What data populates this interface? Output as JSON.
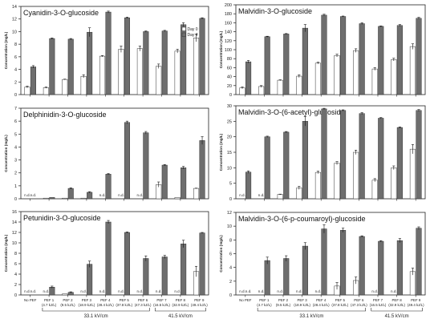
{
  "groups": [
    {
      "label": "33.1 kV/cm"
    },
    {
      "label": "41.5 kV/cm"
    }
  ],
  "chart_data": [
    {
      "type": "bar",
      "title": "Cyanidin-3-O-glucoside",
      "ylabel": "Concentration (mg/L)",
      "ylim": [
        0,
        14
      ],
      "yticks": [
        "0",
        "2",
        "4",
        "6",
        "8",
        "10",
        "12",
        "14"
      ],
      "legend": [
        "Day 0",
        "Day 4"
      ],
      "categories": [
        "No PEF",
        "PEF 1",
        "PEF 2",
        "PEF 3",
        "PEF 4",
        "PEF 5",
        "PEF 6",
        "PEF 7",
        "PEF 8",
        "PEF 9"
      ],
      "series": [
        {
          "name": "Day 0",
          "values": [
            1.2,
            1.1,
            2.4,
            2.9,
            6.1,
            7.2,
            7.3,
            4.5,
            6.9,
            9.0
          ],
          "errors": [
            0.15,
            0.1,
            0.05,
            0.25,
            0.1,
            0.5,
            0.4,
            0.35,
            0.3,
            0.6
          ],
          "nd": [
            false,
            false,
            false,
            false,
            false,
            false,
            false,
            false,
            false,
            false
          ]
        },
        {
          "name": "Day 4",
          "values": [
            4.4,
            8.9,
            8.8,
            9.9,
            13.1,
            12.2,
            10.0,
            10.1,
            11.1,
            12.1
          ],
          "errors": [
            0.2,
            0.1,
            0.1,
            0.7,
            0.15,
            0.1,
            0.1,
            0.1,
            0.3,
            0.1
          ],
          "nd": [
            false,
            false,
            false,
            false,
            false,
            false,
            false,
            false,
            false,
            false
          ]
        }
      ]
    },
    {
      "type": "bar",
      "title": "Malvidin-3-O-glucoside",
      "ylabel": "Concentration (mg/L)",
      "ylim": [
        0,
        200
      ],
      "yticks": [
        "0",
        "20",
        "40",
        "60",
        "80",
        "100",
        "120",
        "140",
        "160",
        "180",
        "200"
      ],
      "categories": [
        "No PEF",
        "PEF 1",
        "PEF 2",
        "PEF 3",
        "PEF 4",
        "PEF 5",
        "PEF 6",
        "PEF 7",
        "PEF 8",
        "PEF 9"
      ],
      "series": [
        {
          "name": "Day 0",
          "values": [
            15,
            18,
            32,
            41,
            70,
            87,
            98,
            57,
            78,
            107
          ],
          "errors": [
            2,
            2,
            1,
            3,
            2,
            3,
            4,
            3,
            3,
            6
          ],
          "nd": [
            false,
            false,
            false,
            false,
            false,
            false,
            false,
            false,
            false,
            false
          ]
        },
        {
          "name": "Day 4",
          "values": [
            73,
            129,
            135,
            148,
            177,
            174,
            158,
            152,
            154,
            170
          ],
          "errors": [
            3,
            1,
            1,
            8,
            2,
            1,
            2,
            1,
            2,
            2
          ],
          "nd": [
            false,
            false,
            false,
            false,
            false,
            false,
            false,
            false,
            false,
            false
          ]
        }
      ]
    },
    {
      "type": "bar",
      "title": "Delphinidin-3-O-glucoside",
      "ylabel": "Concentration (mg/L)",
      "ylim": [
        0,
        7
      ],
      "yticks": [
        "0",
        "1",
        "2",
        "3",
        "4",
        "5",
        "6",
        "7"
      ],
      "categories": [
        "No PEF",
        "PEF 1",
        "PEF 2",
        "PEF 3",
        "PEF 4",
        "PEF 5",
        "PEF 6",
        "PEF 7",
        "PEF 8",
        "PEF 9"
      ],
      "series": [
        {
          "name": "Day 0",
          "values": [
            0,
            0.05,
            0.05,
            0.05,
            0,
            0,
            0,
            1.1,
            0.1,
            0.8
          ],
          "errors": [
            0,
            0,
            0,
            0,
            0,
            0,
            0,
            0.2,
            0,
            0.02
          ],
          "nd": [
            true,
            false,
            false,
            false,
            true,
            true,
            true,
            false,
            false,
            false
          ]
        },
        {
          "name": "Day 4",
          "values": [
            0,
            0.1,
            0.8,
            0.5,
            1.9,
            5.9,
            5.1,
            2.6,
            2.4,
            4.5
          ],
          "errors": [
            0,
            0,
            0.05,
            0.05,
            0.05,
            0.1,
            0.1,
            0.05,
            0.1,
            0.3
          ],
          "nd": [
            true,
            false,
            false,
            false,
            false,
            false,
            false,
            false,
            false,
            false
          ]
        }
      ]
    },
    {
      "type": "bar",
      "title": "Malvidin-3-O-(6-acetyl)-glucoside",
      "ylabel": "Concentration (mg/L)",
      "ylim": [
        0,
        30
      ],
      "yticks": [
        "0",
        "5",
        "10",
        "15",
        "20",
        "25",
        "30"
      ],
      "categories": [
        "No PEF",
        "PEF 1",
        "PEF 2",
        "PEF 3",
        "PEF 4",
        "PEF 5",
        "PEF 6",
        "PEF 7",
        "PEF 8",
        "PEF 9"
      ],
      "series": [
        {
          "name": "Day 0",
          "values": [
            0,
            0,
            1.4,
            3.5,
            8.5,
            11.5,
            15.0,
            6.0,
            10.0,
            16.0
          ],
          "errors": [
            0,
            0,
            0.1,
            0.5,
            0.4,
            0.5,
            0.7,
            0.5,
            0.6,
            1.5
          ],
          "nd": [
            true,
            true,
            false,
            false,
            false,
            false,
            false,
            false,
            false,
            false
          ]
        },
        {
          "name": "Day 4",
          "values": [
            8.6,
            20.0,
            21.5,
            25.0,
            29.0,
            28.5,
            27.5,
            26.0,
            23.0,
            28.5
          ],
          "errors": [
            0.4,
            0.2,
            0.2,
            1.5,
            0.2,
            0.2,
            0.3,
            0.2,
            0.2,
            0.3
          ],
          "nd": [
            false,
            false,
            false,
            false,
            false,
            false,
            false,
            false,
            false,
            false
          ]
        }
      ]
    },
    {
      "type": "bar",
      "title": "Petunidin-3-O-glucoside",
      "ylabel": "Concentration (mg/L)",
      "ylim": [
        0,
        16
      ],
      "yticks": [
        "0",
        "2",
        "4",
        "6",
        "8",
        "10",
        "12",
        "14",
        "16"
      ],
      "categories": [
        "No PEF",
        "PEF 1",
        "PEF 2",
        "PEF 3",
        "PEF 4",
        "PEF 5",
        "PEF 6",
        "PEF 7",
        "PEF 8",
        "PEF 9"
      ],
      "series": [
        {
          "name": "Day 0",
          "values": [
            0,
            0,
            0.2,
            0,
            0,
            0,
            0,
            0,
            0,
            4.5
          ],
          "errors": [
            0,
            0,
            0,
            0,
            0,
            0,
            0,
            0,
            0,
            1.0
          ],
          "nd": [
            true,
            true,
            false,
            true,
            true,
            true,
            true,
            true,
            true,
            false
          ]
        },
        {
          "name": "Day 4",
          "values": [
            0,
            1.5,
            0.5,
            5.9,
            14.0,
            12.0,
            7.0,
            7.3,
            9.8,
            11.9
          ],
          "errors": [
            0,
            0.2,
            0.1,
            0.6,
            0.3,
            0.1,
            0.5,
            0.3,
            0.7,
            0.1
          ],
          "nd": [
            true,
            false,
            false,
            false,
            false,
            false,
            false,
            false,
            false,
            false
          ]
        }
      ]
    },
    {
      "type": "bar",
      "title": "Malvidin-3-O-(6-p-coumaroyl)-glucoside",
      "ylabel": "Concentration (mg/L)",
      "ylim": [
        0,
        12
      ],
      "yticks": [
        "0",
        "2",
        "4",
        "6",
        "8",
        "10",
        "12"
      ],
      "categories": [
        "No PEF",
        "PEF 1",
        "PEF 2",
        "PEF 3",
        "PEF 4",
        "PEF 5",
        "PEF 6",
        "PEF 7",
        "PEF 8",
        "PEF 9"
      ],
      "xticks": [
        "No PEF",
        "PEF 1\n(4.7 kJ/L)",
        "PEF 2\n(9.5 kJ/L)",
        "PEF 3\n(18.9 kJ/L)",
        "PEF 4\n(28.4 kJ/L)",
        "PEF 5\n(37.8 kJ/L)",
        "PEF 6\n(47.3 kJ/L)",
        "PEF 7\n(16.5 kJ/L)",
        "PEF 8\n(32.9 kJ/L)",
        "PEF 9\n(49.4 kJ/L)"
      ],
      "series": [
        {
          "name": "Day 0",
          "values": [
            0,
            0,
            0,
            0,
            0,
            1.3,
            2.1,
            0,
            0,
            3.4
          ],
          "errors": [
            0,
            0,
            0,
            0,
            0,
            0.5,
            0.5,
            0,
            0,
            0.5
          ],
          "nd": [
            true,
            true,
            true,
            true,
            true,
            false,
            false,
            true,
            true,
            false
          ]
        },
        {
          "name": "Day 4",
          "values": [
            0,
            5.0,
            5.3,
            7.1,
            9.6,
            9.4,
            8.5,
            7.8,
            7.9,
            9.7
          ],
          "errors": [
            0,
            0.5,
            0.4,
            0.5,
            0.6,
            0.3,
            0.1,
            0.1,
            0.3,
            0.2
          ],
          "nd": [
            true,
            false,
            false,
            false,
            false,
            false,
            false,
            false,
            false,
            false
          ]
        }
      ]
    }
  ]
}
